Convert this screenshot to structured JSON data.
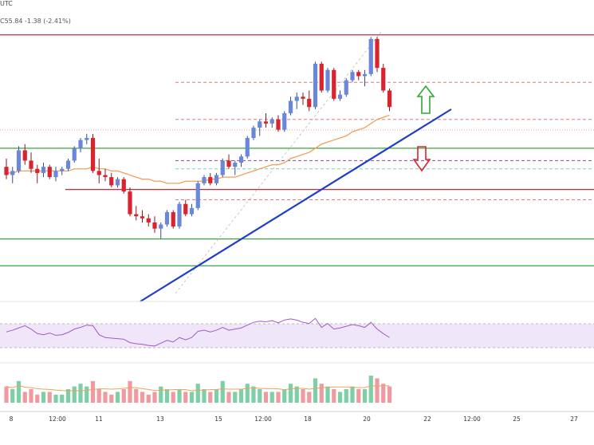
{
  "header": {
    "title_fragment": "UTC",
    "price_change": "C55.84  -1.38 (-2.41%)"
  },
  "colors": {
    "up": "#6a87d9",
    "down": "#d9242f",
    "trendline": "#1f3fc9",
    "ema": "#f0a05a",
    "support": "#3aa640",
    "resistance": "#d9242f",
    "rsi_band": "#e6d6f5",
    "rsi_line": "#a05ac8",
    "vol_up": "#7dcfa6",
    "vol_down": "#f09aa0",
    "arrow_up": "#2ea82e",
    "arrow_down": "#d9242f"
  },
  "chart_data": {
    "type": "candlestick",
    "x_tick_labels": [
      "8",
      "12:00",
      "11",
      "13",
      "15",
      "12:00",
      "18",
      "20",
      "22",
      "12:00",
      "25",
      "27"
    ],
    "price_axis": {
      "top": 100,
      "bottom": 0
    },
    "candles": [
      {
        "o": 63,
        "h": 67,
        "l": 57,
        "c": 59
      },
      {
        "o": 59,
        "h": 63,
        "l": 55,
        "c": 61
      },
      {
        "o": 61,
        "h": 73,
        "l": 60,
        "c": 71
      },
      {
        "o": 71,
        "h": 74,
        "l": 64,
        "c": 66
      },
      {
        "o": 66,
        "h": 70,
        "l": 60,
        "c": 62
      },
      {
        "o": 62,
        "h": 64,
        "l": 55,
        "c": 60
      },
      {
        "o": 60,
        "h": 65,
        "l": 58,
        "c": 63
      },
      {
        "o": 63,
        "h": 64,
        "l": 57,
        "c": 58
      },
      {
        "o": 58,
        "h": 63,
        "l": 56,
        "c": 61
      },
      {
        "o": 61,
        "h": 63,
        "l": 59,
        "c": 62
      },
      {
        "o": 62,
        "h": 67,
        "l": 61,
        "c": 66
      },
      {
        "o": 66,
        "h": 73,
        "l": 65,
        "c": 72
      },
      {
        "o": 72,
        "h": 77,
        "l": 70,
        "c": 76
      },
      {
        "o": 76,
        "h": 79,
        "l": 74,
        "c": 77
      },
      {
        "o": 77,
        "h": 79,
        "l": 60,
        "c": 61
      },
      {
        "o": 61,
        "h": 67,
        "l": 55,
        "c": 59
      },
      {
        "o": 59,
        "h": 62,
        "l": 56,
        "c": 58
      },
      {
        "o": 58,
        "h": 60,
        "l": 53,
        "c": 54
      },
      {
        "o": 54,
        "h": 58,
        "l": 53,
        "c": 57
      },
      {
        "o": 57,
        "h": 58,
        "l": 50,
        "c": 51
      },
      {
        "o": 51,
        "h": 53,
        "l": 39,
        "c": 40
      },
      {
        "o": 40,
        "h": 44,
        "l": 37,
        "c": 39
      },
      {
        "o": 39,
        "h": 42,
        "l": 36,
        "c": 38
      },
      {
        "o": 38,
        "h": 40,
        "l": 34,
        "c": 36
      },
      {
        "o": 36,
        "h": 39,
        "l": 31,
        "c": 33
      },
      {
        "o": 33,
        "h": 36,
        "l": 28,
        "c": 35
      },
      {
        "o": 35,
        "h": 42,
        "l": 34,
        "c": 41
      },
      {
        "o": 41,
        "h": 42,
        "l": 33,
        "c": 34
      },
      {
        "o": 34,
        "h": 46,
        "l": 33,
        "c": 45
      },
      {
        "o": 45,
        "h": 47,
        "l": 39,
        "c": 40
      },
      {
        "o": 40,
        "h": 45,
        "l": 39,
        "c": 43
      },
      {
        "o": 43,
        "h": 56,
        "l": 42,
        "c": 55
      },
      {
        "o": 55,
        "h": 59,
        "l": 54,
        "c": 58
      },
      {
        "o": 58,
        "h": 60,
        "l": 54,
        "c": 55
      },
      {
        "o": 55,
        "h": 60,
        "l": 54,
        "c": 59
      },
      {
        "o": 59,
        "h": 67,
        "l": 58,
        "c": 66
      },
      {
        "o": 66,
        "h": 69,
        "l": 62,
        "c": 63
      },
      {
        "o": 63,
        "h": 66,
        "l": 59,
        "c": 65
      },
      {
        "o": 65,
        "h": 69,
        "l": 63,
        "c": 68
      },
      {
        "o": 68,
        "h": 78,
        "l": 67,
        "c": 77
      },
      {
        "o": 77,
        "h": 83,
        "l": 76,
        "c": 82
      },
      {
        "o": 82,
        "h": 86,
        "l": 78,
        "c": 85
      },
      {
        "o": 85,
        "h": 89,
        "l": 82,
        "c": 84
      },
      {
        "o": 84,
        "h": 87,
        "l": 82,
        "c": 86
      },
      {
        "o": 86,
        "h": 88,
        "l": 80,
        "c": 81
      },
      {
        "o": 81,
        "h": 90,
        "l": 80,
        "c": 89
      },
      {
        "o": 89,
        "h": 97,
        "l": 88,
        "c": 95
      },
      {
        "o": 95,
        "h": 99,
        "l": 91,
        "c": 97
      },
      {
        "o": 97,
        "h": 99,
        "l": 93,
        "c": 96
      },
      {
        "o": 96,
        "h": 100,
        "l": 90,
        "c": 92
      },
      {
        "o": 92,
        "h": 114,
        "l": 91,
        "c": 113
      },
      {
        "o": 113,
        "h": 114,
        "l": 99,
        "c": 100
      },
      {
        "o": 100,
        "h": 111,
        "l": 99,
        "c": 110
      },
      {
        "o": 110,
        "h": 111,
        "l": 95,
        "c": 96
      },
      {
        "o": 96,
        "h": 100,
        "l": 95,
        "c": 98
      },
      {
        "o": 98,
        "h": 106,
        "l": 97,
        "c": 105
      },
      {
        "o": 105,
        "h": 110,
        "l": 104,
        "c": 109
      },
      {
        "o": 109,
        "h": 110,
        "l": 105,
        "c": 107
      },
      {
        "o": 107,
        "h": 110,
        "l": 102,
        "c": 108
      },
      {
        "o": 108,
        "h": 126,
        "l": 107,
        "c": 125
      },
      {
        "o": 125,
        "h": 126,
        "l": 109,
        "c": 111
      },
      {
        "o": 111,
        "h": 113,
        "l": 99,
        "c": 100
      },
      {
        "o": 100,
        "h": 101,
        "l": 90,
        "c": 92
      }
    ],
    "ema": [
      60,
      60,
      61,
      61,
      61,
      61,
      61,
      61,
      61,
      61,
      61,
      62,
      62,
      62,
      63,
      62,
      62,
      61,
      61,
      60,
      59,
      58,
      57,
      57,
      56,
      56,
      55,
      55,
      55,
      56,
      56,
      56,
      56,
      57,
      57,
      58,
      58,
      58,
      59,
      60,
      61,
      62,
      63,
      64,
      64,
      65,
      67,
      68,
      69,
      70,
      72,
      74,
      75,
      76,
      77,
      78,
      80,
      81,
      82,
      84,
      86,
      87,
      88
    ],
    "volume": [
      6,
      5,
      8,
      4,
      5,
      3,
      4,
      4,
      3,
      3,
      5,
      6,
      7,
      6,
      8,
      5,
      4,
      3,
      4,
      5,
      8,
      5,
      4,
      3,
      4,
      6,
      5,
      4,
      5,
      4,
      4,
      7,
      5,
      4,
      5,
      8,
      4,
      4,
      5,
      7,
      6,
      5,
      4,
      4,
      4,
      5,
      7,
      6,
      5,
      4,
      9,
      7,
      6,
      5,
      4,
      5,
      6,
      5,
      5,
      10,
      9,
      7,
      6
    ],
    "rsi": [
      55,
      58,
      62,
      66,
      60,
      52,
      50,
      53,
      49,
      50,
      54,
      60,
      63,
      67,
      66,
      50,
      45,
      44,
      43,
      42,
      36,
      34,
      33,
      31,
      30,
      35,
      40,
      37,
      45,
      41,
      45,
      56,
      58,
      55,
      58,
      63,
      58,
      60,
      62,
      67,
      72,
      74,
      73,
      75,
      71,
      76,
      78,
      76,
      72,
      70,
      79,
      63,
      70,
      60,
      62,
      65,
      68,
      66,
      63,
      72,
      60,
      52,
      45
    ],
    "horizontal_levels": [
      {
        "type": "resistance",
        "value": 127
      },
      {
        "type": "support",
        "value": 72
      },
      {
        "type": "support",
        "value": 28
      },
      {
        "type": "support",
        "value": 15
      },
      {
        "type": "resistance",
        "value": 52
      },
      {
        "type": "dashed-red",
        "value": 104
      },
      {
        "type": "dashed-red",
        "value": 86
      },
      {
        "type": "dashed-purple",
        "value": 66
      },
      {
        "type": "dashed-teal",
        "value": 62
      },
      {
        "type": "dashed-red",
        "value": 47
      }
    ]
  }
}
